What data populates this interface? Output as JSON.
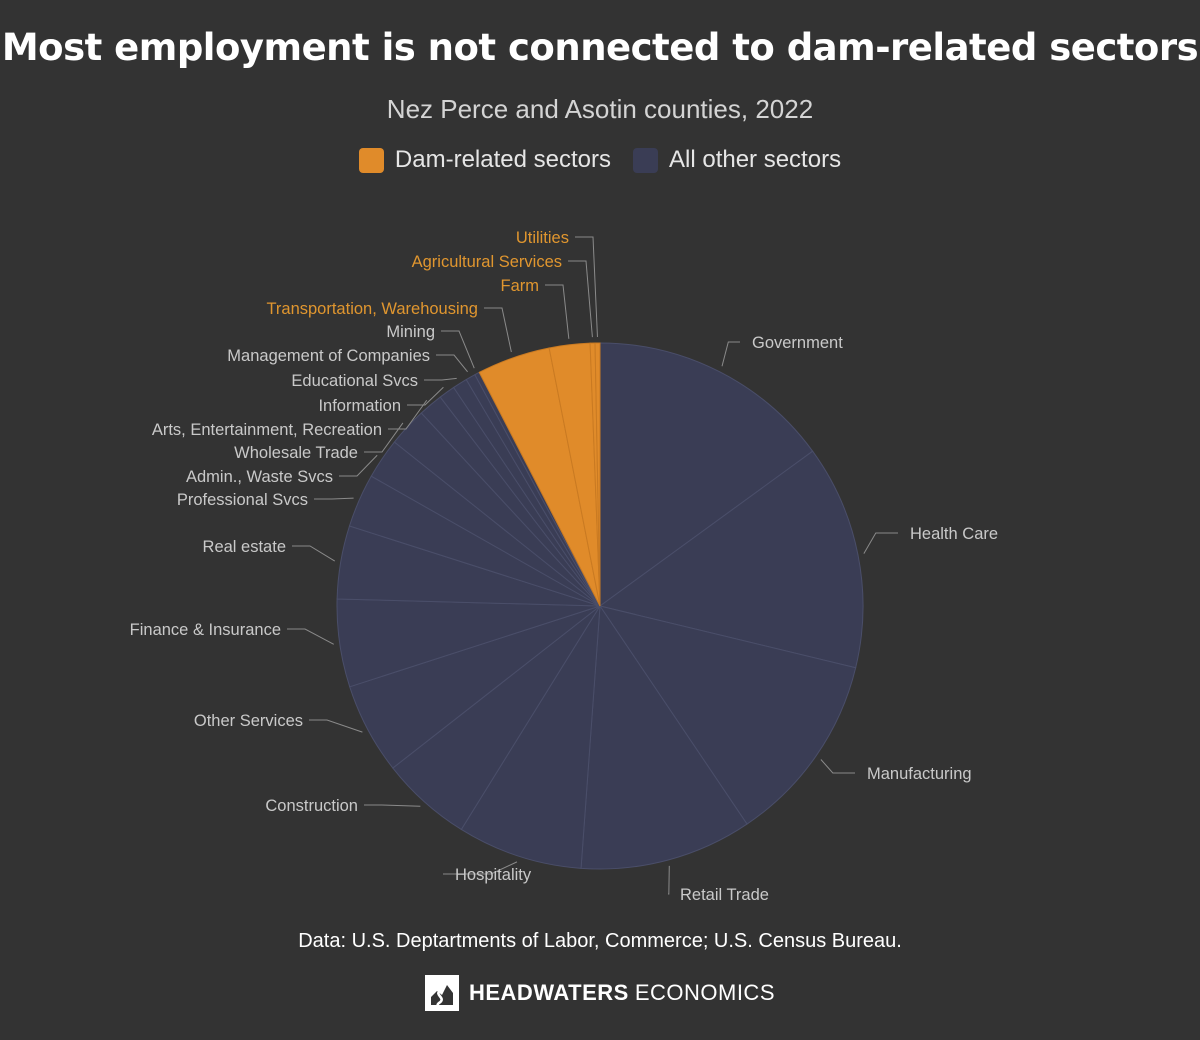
{
  "header": {
    "title": "Most employment is not connected to dam-related sectors",
    "subtitle": "Nez Perce and Asotin counties, 2022"
  },
  "legend": {
    "dam_label": "Dam-related sectors",
    "other_label": "All other sectors"
  },
  "colors": {
    "dam": "#E08B2A",
    "other": "#3A3D55",
    "background": "#333333",
    "dam_label": "#E0962F",
    "other_label": "#c9c9c9"
  },
  "chart_data": {
    "type": "pie",
    "slices": [
      {
        "label": "Government",
        "value": 15.0,
        "group": "other"
      },
      {
        "label": "Health Care",
        "value": 13.8,
        "group": "other"
      },
      {
        "label": "Manufacturing",
        "value": 11.8,
        "group": "other"
      },
      {
        "label": "Retail Trade",
        "value": 10.6,
        "group": "other"
      },
      {
        "label": "Hospitality",
        "value": 7.7,
        "group": "other"
      },
      {
        "label": "Construction",
        "value": 5.6,
        "group": "other"
      },
      {
        "label": "Other Services",
        "value": 5.6,
        "group": "other"
      },
      {
        "label": "Finance & Insurance",
        "value": 5.4,
        "group": "other"
      },
      {
        "label": "Real estate",
        "value": 4.5,
        "group": "other"
      },
      {
        "label": "Professional Svcs",
        "value": 3.3,
        "group": "other"
      },
      {
        "label": "Admin., Waste Svcs",
        "value": 2.5,
        "group": "other"
      },
      {
        "label": "Wholesale Trade",
        "value": 2.4,
        "group": "other"
      },
      {
        "label": "Arts, Entertainment, Recreation",
        "value": 1.5,
        "group": "other"
      },
      {
        "label": "Information",
        "value": 1.0,
        "group": "other"
      },
      {
        "label": "Educational Svcs",
        "value": 0.9,
        "group": "other"
      },
      {
        "label": "Management of Companies",
        "value": 0.6,
        "group": "other"
      },
      {
        "label": "Mining",
        "value": 0.3,
        "group": "other"
      },
      {
        "label": "Transportation, Warehousing",
        "value": 4.5,
        "group": "dam"
      },
      {
        "label": "Farm",
        "value": 2.5,
        "group": "dam"
      },
      {
        "label": "Agricultural Services",
        "value": 0.3,
        "group": "dam"
      },
      {
        "label": "Utilities",
        "value": 0.3,
        "group": "dam"
      }
    ]
  },
  "footer": {
    "source": "Data: U.S. Deptartments of Labor, Commerce; U.S. Census Bureau.",
    "brand_bold": "HEADWATERS",
    "brand_light": "ECONOMICS"
  }
}
